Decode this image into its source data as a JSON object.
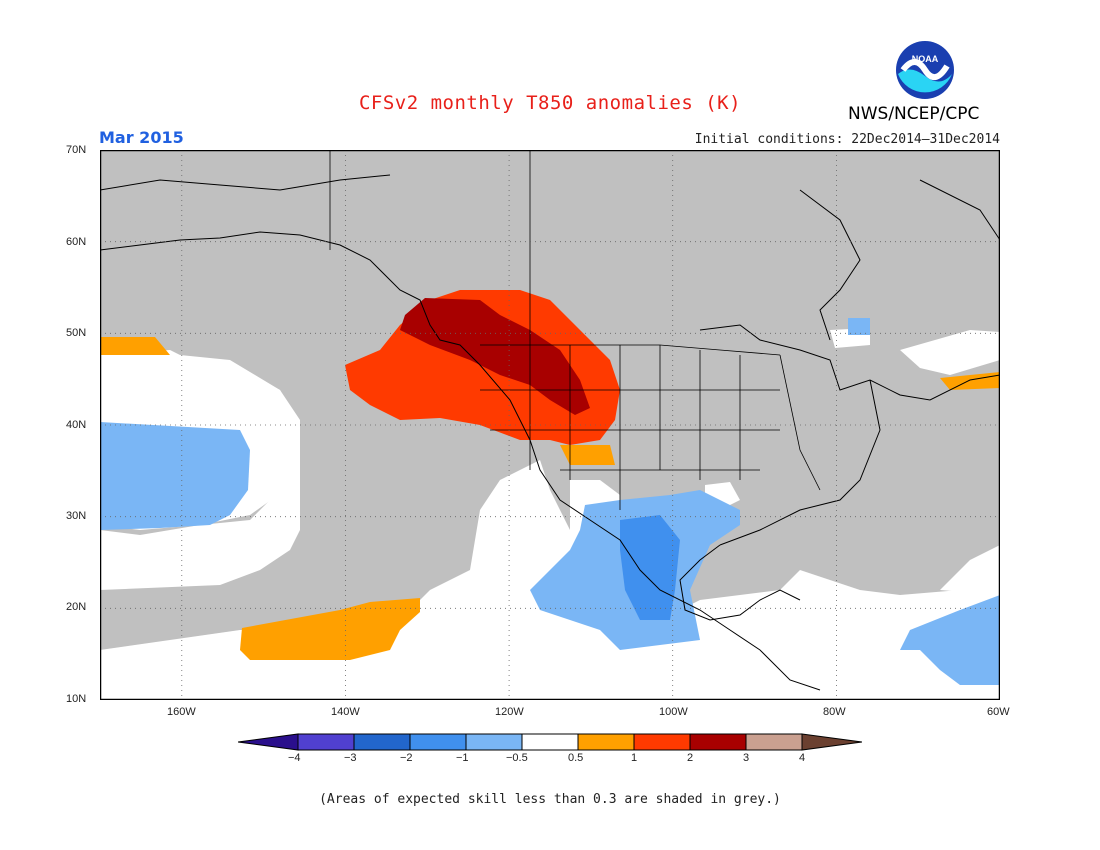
{
  "title": "CFSv2 monthly T850 anomalies (K)",
  "month": "Mar 2015",
  "initial_conditions": "Initial conditions: 22Dec2014–31Dec2014",
  "agency": "NWS/NCEP/CPC",
  "logo_text": "NOAA",
  "note": "(Areas of expected skill less than 0.3 are shaded in grey.)",
  "lat_labels": [
    "70N",
    "60N",
    "50N",
    "40N",
    "30N",
    "20N",
    "10N"
  ],
  "lon_labels": [
    "160W",
    "140W",
    "120W",
    "100W",
    "80W",
    "60W"
  ],
  "colorbar": {
    "tick_labels": [
      "−4",
      "−3",
      "−2",
      "−1",
      "−0.5",
      "0.5",
      "1",
      "2",
      "3",
      "4"
    ],
    "colors": [
      "#2a0f8c",
      "#5040d0",
      "#2266cc",
      "#4090ee",
      "#7ab6f5",
      "#ffffff",
      "#ffa000",
      "#ff3a00",
      "#a80000",
      "#caa090",
      "#6b4030"
    ]
  },
  "colors": {
    "skill_grey": "#c0c0c0",
    "title_red": "#e8201a",
    "month_blue": "#2060e0"
  }
}
